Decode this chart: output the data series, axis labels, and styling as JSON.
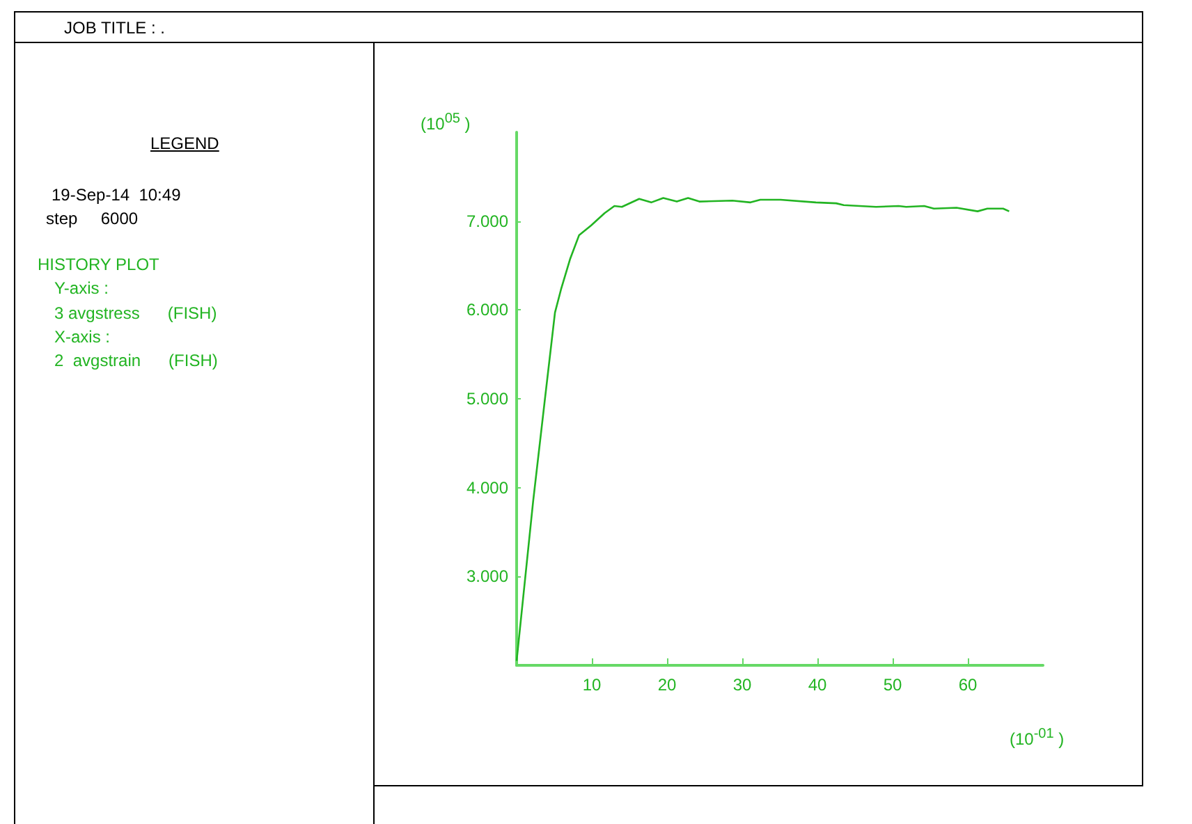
{
  "chart_data": {
    "type": "line",
    "xlabel": "(10$^{-01}$ )",
    "ylabel": "(10$^{05}$ )",
    "annotations": [
      "JOB TITLE : .",
      "LEGEND",
      "19-Sep-14  10:49",
      "step     6000",
      "HISTORY PLOT",
      "Y-axis :",
      "3 avgstress      (FISH)",
      "X-axis :",
      "2  avgstrain      (FISH)"
    ],
    "x": [
      0,
      2.2,
      3.7,
      5.1,
      5.9,
      7.1,
      8.3,
      9.9,
      11.7,
      13.0,
      14.0,
      16.3,
      17.9,
      19.5,
      21.3,
      22.8,
      24.3,
      28.7,
      31.1,
      32.4,
      35.1,
      39.8,
      42.5,
      43.5,
      47.8,
      50.8,
      51.8,
      54.2,
      55.5,
      58.5,
      61.3,
      62.6,
      64.7,
      65.5
    ],
    "values": [
      2.05,
      3.85,
      4.95,
      5.97,
      6.23,
      6.57,
      6.84,
      6.95,
      7.09,
      7.17,
      7.16,
      7.25,
      7.21,
      7.26,
      7.22,
      7.26,
      7.22,
      7.23,
      7.21,
      7.24,
      7.24,
      7.21,
      7.2,
      7.18,
      7.16,
      7.17,
      7.16,
      7.17,
      7.14,
      7.15,
      7.11,
      7.14,
      7.14,
      7.11
    ],
    "color": "#22b422",
    "marker": "none",
    "xlim": [
      0,
      70
    ],
    "xticks": [
      10,
      20,
      30,
      40,
      50,
      60
    ],
    "ylim": [
      2,
      8
    ],
    "yticks": [
      {
        "value": 3,
        "label": "3.000"
      },
      {
        "value": 4,
        "label": "4.000"
      },
      {
        "value": 5,
        "label": "5.000"
      },
      {
        "value": 6,
        "label": "6.000"
      },
      {
        "value": 7,
        "label": "7.000"
      }
    ]
  }
}
